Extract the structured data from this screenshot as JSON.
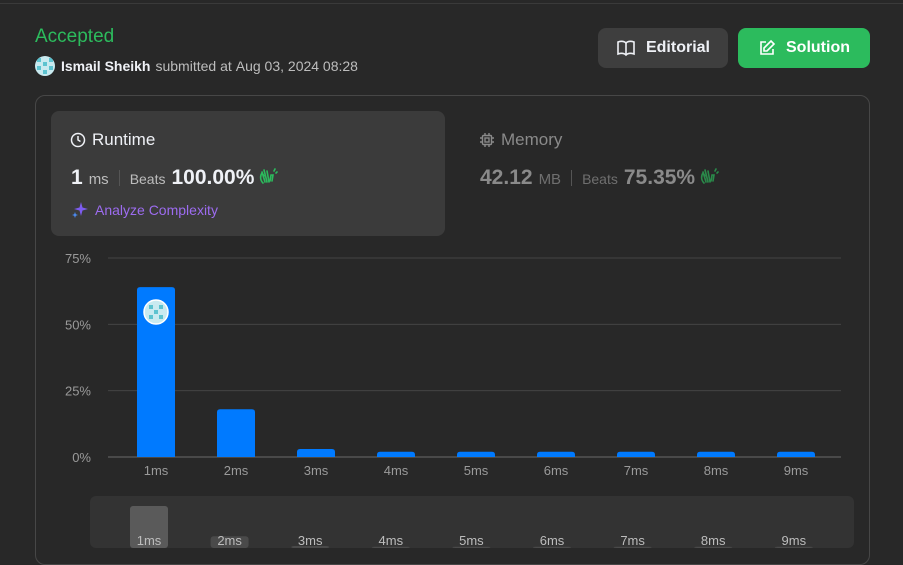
{
  "submission": {
    "status": "Accepted",
    "user": "Ismail Sheikh",
    "submitted_text": "submitted at",
    "datetime": "Aug 03, 2024 08:28"
  },
  "buttons": {
    "editorial": "Editorial",
    "solution": "Solution"
  },
  "runtime": {
    "title": "Runtime",
    "value": "1",
    "unit": "ms",
    "beats_label": "Beats",
    "beats_pct": "100.00%",
    "analyze": "Analyze Complexity"
  },
  "memory": {
    "title": "Memory",
    "value": "42.12",
    "unit": "MB",
    "beats_label": "Beats",
    "beats_pct": "75.35%"
  },
  "colors": {
    "accepted": "#2cbb5d",
    "bar": "#007aff",
    "analyze": "#9d6cf0"
  },
  "icons": {
    "editorial": "book-open-icon",
    "solution": "edit-icon",
    "runtime": "clock-icon",
    "memory": "chip-icon",
    "beats": "clapping-hands-icon",
    "analyze": "sparkle-icon"
  },
  "chart_data": {
    "type": "bar",
    "categories": [
      "1ms",
      "2ms",
      "3ms",
      "4ms",
      "5ms",
      "6ms",
      "7ms",
      "8ms",
      "9ms"
    ],
    "values": [
      64,
      18,
      3,
      2,
      2,
      2,
      2,
      2,
      2
    ],
    "yticks": [
      "0%",
      "25%",
      "50%",
      "75%"
    ],
    "ylim": [
      0,
      75
    ],
    "grid": true,
    "highlight_category": "1ms",
    "overview_labels": [
      "1ms",
      "2ms",
      "3ms",
      "4ms",
      "5ms",
      "6ms",
      "7ms",
      "8ms",
      "9ms"
    ]
  }
}
